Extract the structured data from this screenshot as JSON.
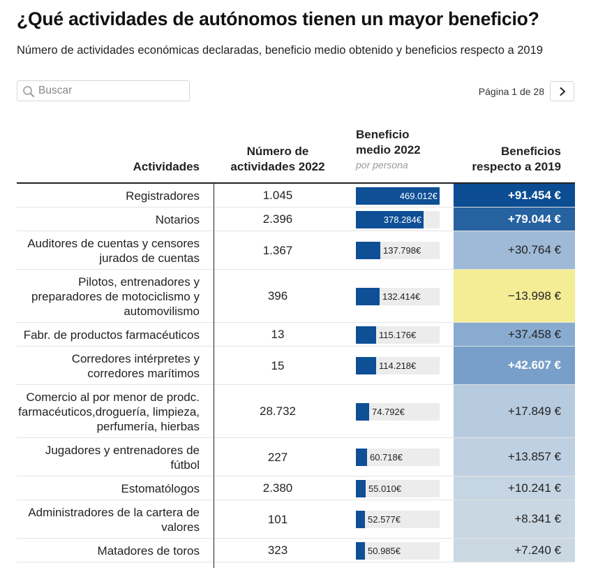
{
  "title": "¿Qué actividades de autónomos tienen un mayor beneficio?",
  "subtitle": "Número de actividades económicas declaradas, beneficio medio obtenido y beneficios respecto a 2019",
  "search": {
    "placeholder": "Buscar",
    "value": ""
  },
  "pagination": {
    "label": "Página 1 de 28",
    "next_icon": "chevron-right-icon"
  },
  "headers": {
    "activity": "Actividades",
    "count": "Número de actividades 2022",
    "benefit": "Beneficio medio 2022",
    "benefit_sub": "por persona",
    "change": "Beneficios respecto a 2019"
  },
  "colors": {
    "bar_fill": "#0e4f96",
    "bar_track": "#ececec",
    "negative_cell": "#f5ec96"
  },
  "rows": [
    {
      "activity": "Registradores",
      "count": "1.045",
      "benefit": "469.012€",
      "benefit_value": 469012,
      "change": "+91.454 €",
      "change_value": 91454,
      "lines": 1
    },
    {
      "activity": "Notarios",
      "count": "2.396",
      "benefit": "378.284€",
      "benefit_value": 378284,
      "change": "+79.044 €",
      "change_value": 79044,
      "lines": 1
    },
    {
      "activity": "Auditores de cuentas y censores jurados de cuentas",
      "count": "1.367",
      "benefit": "137.798€",
      "benefit_value": 137798,
      "change": "+30.764 €",
      "change_value": 30764,
      "lines": 2
    },
    {
      "activity": "Pilotos, entrenadores y preparadores de motociclismo y automovilismo",
      "count": "396",
      "benefit": "132.414€",
      "benefit_value": 132414,
      "change": "−13.998 €",
      "change_value": -13998,
      "lines": 3
    },
    {
      "activity": "Fabr. de productos farmacéuticos",
      "count": "13",
      "benefit": "115.176€",
      "benefit_value": 115176,
      "change": "+37.458 €",
      "change_value": 37458,
      "lines": 1
    },
    {
      "activity": "Corredores intérpretes y corredores marítimos",
      "count": "15",
      "benefit": "114.218€",
      "benefit_value": 114218,
      "change": "+42.607 €",
      "change_value": 42607,
      "lines": 2
    },
    {
      "activity": "Comercio al por menor de prodc. farmacéuticos,droguería, limpieza, perfumería, hierbas",
      "count": "28.732",
      "benefit": "74.792€",
      "benefit_value": 74792,
      "change": "+17.849 €",
      "change_value": 17849,
      "lines": 3
    },
    {
      "activity": "Jugadores y entrenadores de fútbol",
      "count": "227",
      "benefit": "60.718€",
      "benefit_value": 60718,
      "change": "+13.857 €",
      "change_value": 13857,
      "lines": 2
    },
    {
      "activity": "Estomatólogos",
      "count": "2.380",
      "benefit": "55.010€",
      "benefit_value": 55010,
      "change": "+10.241 €",
      "change_value": 10241,
      "lines": 1
    },
    {
      "activity": "Administradores de la cartera de valores",
      "count": "101",
      "benefit": "52.577€",
      "benefit_value": 52577,
      "change": "+8.341 €",
      "change_value": 8341,
      "lines": 2
    },
    {
      "activity": "Matadores de toros",
      "count": "323",
      "benefit": "50.985€",
      "benefit_value": 50985,
      "change": "+7.240 €",
      "change_value": 7240,
      "lines": 1
    }
  ]
}
